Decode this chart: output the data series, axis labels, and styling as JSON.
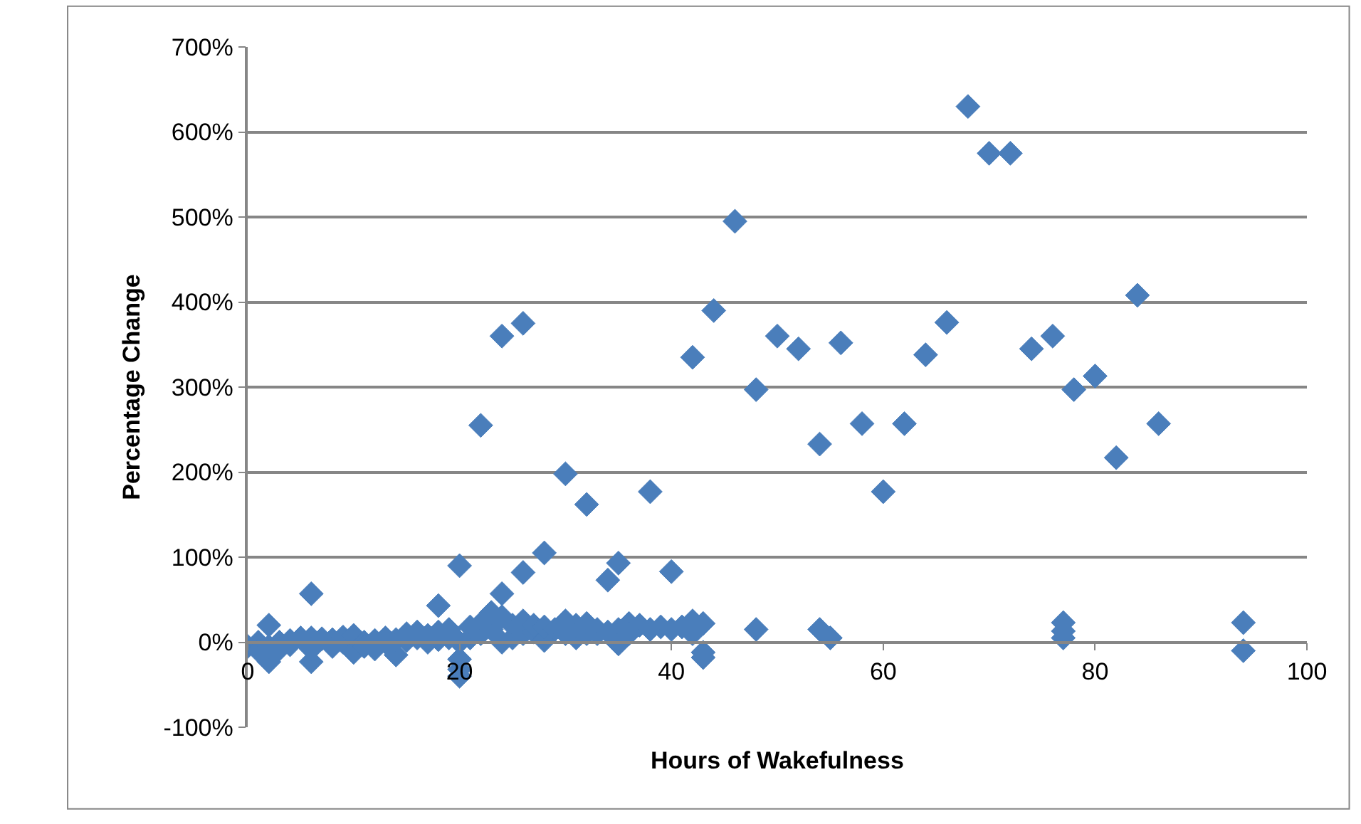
{
  "chart_data": {
    "type": "scatter",
    "xlabel": "Hours of Wakefulness",
    "ylabel": "Percentage Change",
    "x": [
      0,
      1,
      1,
      2,
      2,
      2,
      3,
      3,
      4,
      4,
      5,
      6,
      6,
      6,
      6,
      7,
      8,
      8,
      9,
      9,
      10,
      10,
      11,
      11,
      12,
      12,
      13,
      13,
      14,
      14,
      15,
      15,
      16,
      16,
      17,
      17,
      18,
      18,
      18,
      19,
      19,
      20,
      20,
      20,
      20,
      20,
      21,
      21,
      22,
      22,
      22,
      23,
      23,
      24,
      24,
      24,
      24,
      25,
      25,
      26,
      26,
      26,
      26,
      27,
      27,
      28,
      28,
      28,
      29,
      30,
      30,
      30,
      31,
      31,
      32,
      32,
      32,
      33,
      33,
      34,
      34,
      35,
      35,
      35,
      36,
      36,
      37,
      38,
      38,
      39,
      40,
      40,
      41,
      42,
      42,
      42,
      43,
      43,
      43,
      44,
      46,
      48,
      48,
      50,
      52,
      54,
      54,
      55,
      56,
      58,
      60,
      62,
      64,
      66,
      68,
      70,
      72,
      74,
      76,
      77,
      77,
      77,
      78,
      80,
      82,
      84,
      86,
      94,
      94
    ],
    "values": [
      -5,
      0,
      -10,
      20,
      -23,
      -5,
      0,
      -8,
      2,
      -3,
      5,
      57,
      -23,
      5,
      -8,
      4,
      3,
      -5,
      0,
      6,
      -12,
      8,
      0,
      -5,
      2,
      -8,
      5,
      0,
      -15,
      3,
      10,
      2,
      5,
      12,
      8,
      0,
      43,
      12,
      3,
      5,
      15,
      90,
      -32,
      -40,
      -20,
      0,
      5,
      18,
      255,
      10,
      22,
      15,
      35,
      360,
      57,
      0,
      30,
      5,
      20,
      375,
      82,
      10,
      25,
      12,
      20,
      105,
      2,
      18,
      15,
      198,
      10,
      25,
      5,
      20,
      162,
      10,
      22,
      15,
      10,
      73,
      12,
      93,
      -2,
      15,
      22,
      10,
      20,
      177,
      15,
      18,
      83,
      15,
      18,
      335,
      10,
      25,
      -12,
      -18,
      22,
      390,
      495,
      297,
      15,
      360,
      345,
      233,
      15,
      5,
      352,
      257,
      177,
      257,
      338,
      376,
      630,
      575,
      575,
      345,
      360,
      23,
      5,
      13,
      297,
      313,
      217,
      408,
      257,
      23,
      -10
    ],
    "color": "#4a7ebb",
    "marker": "diamond",
    "grid": "y",
    "xlim": [
      0,
      100
    ],
    "xticks": [
      0,
      20,
      40,
      60,
      80,
      100
    ],
    "ylim": [
      -100,
      700
    ],
    "yticks": [
      {
        "value": -100,
        "label": "-100%"
      },
      {
        "value": 0,
        "label": "0%"
      },
      {
        "value": 100,
        "label": "100%"
      },
      {
        "value": 200,
        "label": "200%"
      },
      {
        "value": 300,
        "label": "300%"
      },
      {
        "value": 400,
        "label": "400%"
      },
      {
        "value": 500,
        "label": "500%"
      },
      {
        "value": 600,
        "label": "600%"
      },
      {
        "value": 700,
        "label": "700%"
      }
    ]
  }
}
